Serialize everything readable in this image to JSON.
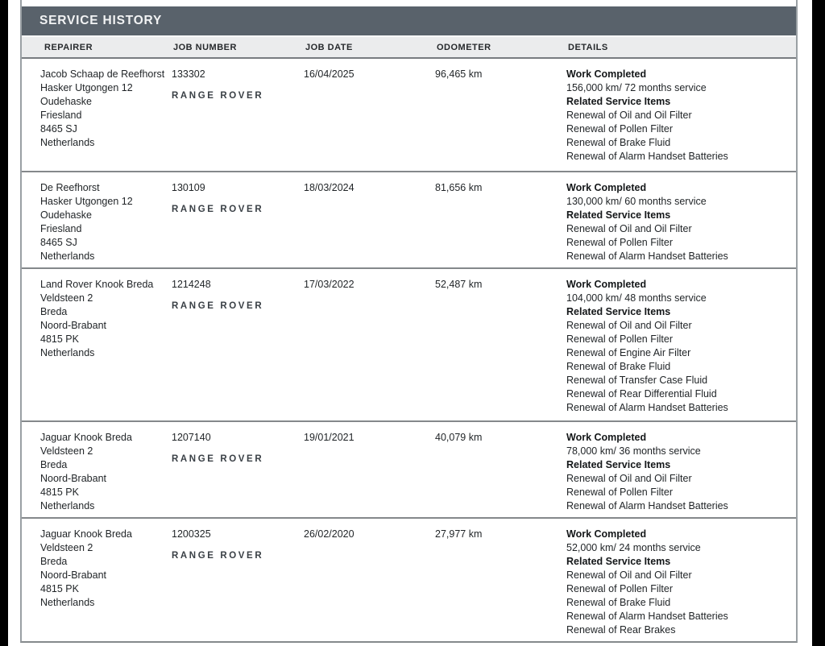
{
  "page": {
    "title": "SERVICE HISTORY"
  },
  "colors": {
    "title_bar": "#59626b",
    "header_row_bg": "#ebeced",
    "outer_border": "#9aa0a4",
    "row_separator": "#84888b",
    "logo_text": "#3a4046",
    "body_text": "#1f2326"
  },
  "table": {
    "columns": [
      "REPAIRER",
      "JOB NUMBER",
      "JOB DATE",
      "ODOMETER",
      "DETAILS"
    ],
    "brand_logo": "RANGE ROVER",
    "labels": {
      "work_completed": "Work Completed",
      "related_items": "Related Service Items"
    },
    "rows": [
      {
        "repairer": [
          "Jacob Schaap de Reefhorst",
          "Hasker Utgongen 12",
          "Oudehaske",
          "Friesland",
          "8465 SJ",
          "Netherlands"
        ],
        "job_number": "133302",
        "job_date": "16/04/2025",
        "odometer": "96,465 km",
        "service": "156,000 km/ 72 months service",
        "items": [
          "Renewal of Oil and Oil Filter",
          "Renewal of Pollen Filter",
          "Renewal of Brake Fluid",
          "Renewal of Alarm Handset Batteries"
        ]
      },
      {
        "repairer": [
          "De Reefhorst",
          "Hasker Utgongen 12",
          "Oudehaske",
          "Friesland",
          "8465 SJ",
          "Netherlands"
        ],
        "job_number": "130109",
        "job_date": "18/03/2024",
        "odometer": "81,656 km",
        "service": "130,000 km/ 60 months service",
        "items": [
          "Renewal of Oil and Oil Filter",
          "Renewal of Pollen Filter",
          "Renewal of Alarm Handset Batteries"
        ]
      },
      {
        "repairer": [
          "Land Rover Knook Breda",
          "Veldsteen 2",
          "Breda",
          "Noord-Brabant",
          "4815 PK",
          "Netherlands"
        ],
        "job_number": "1214248",
        "job_date": "17/03/2022",
        "odometer": "52,487 km",
        "service": "104,000 km/ 48 months service",
        "items": [
          "Renewal of Oil and Oil Filter",
          "Renewal of Pollen Filter",
          "Renewal of Engine Air Filter",
          "Renewal of Brake Fluid",
          "Renewal of Transfer Case Fluid",
          "Renewal of Rear Differential Fluid",
          "Renewal of Alarm Handset Batteries"
        ]
      },
      {
        "repairer": [
          "Jaguar Knook Breda",
          "Veldsteen 2",
          "Breda",
          "Noord-Brabant",
          "4815 PK",
          "Netherlands"
        ],
        "job_number": "1207140",
        "job_date": "19/01/2021",
        "odometer": "40,079 km",
        "service": "78,000 km/ 36 months service",
        "items": [
          "Renewal of Oil and Oil Filter",
          "Renewal of Pollen Filter",
          "Renewal of Alarm Handset Batteries"
        ]
      },
      {
        "repairer": [
          "Jaguar Knook Breda",
          "Veldsteen 2",
          "Breda",
          "Noord-Brabant",
          "4815 PK",
          "Netherlands"
        ],
        "job_number": "1200325",
        "job_date": "26/02/2020",
        "odometer": "27,977 km",
        "service": "52,000 km/ 24 months service",
        "items": [
          "Renewal of Oil and Oil Filter",
          "Renewal of Pollen Filter",
          "Renewal of Brake Fluid",
          "Renewal of Alarm Handset Batteries",
          "Renewal of Rear Brakes"
        ]
      }
    ]
  }
}
